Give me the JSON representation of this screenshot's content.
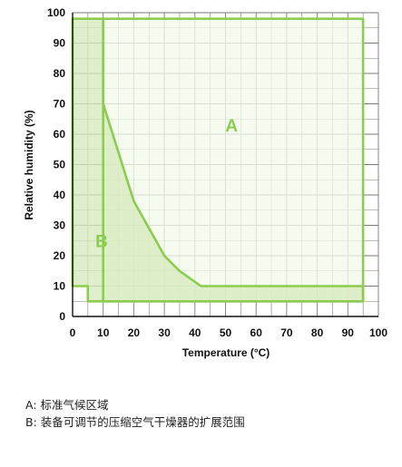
{
  "chart_data": {
    "type": "area",
    "xlabel": "Temperature (°C)",
    "ylabel": "Relative humidity (%)",
    "xlim": [
      0,
      100
    ],
    "ylim": [
      0,
      100
    ],
    "xticks": [
      0,
      10,
      20,
      30,
      40,
      50,
      60,
      70,
      80,
      90,
      100
    ],
    "yticks": [
      0,
      10,
      20,
      30,
      40,
      50,
      60,
      70,
      80,
      90,
      100
    ],
    "grid": true,
    "minor_grid_step": 5,
    "regions": [
      {
        "label": "A",
        "label_pos": [
          52,
          63
        ],
        "fill": "#f4faea",
        "stroke": "#8ccc4e",
        "points": [
          [
            10,
            98
          ],
          [
            95,
            98
          ],
          [
            95,
            5
          ],
          [
            10,
            5
          ]
        ]
      },
      {
        "label": "B",
        "label_pos": [
          9.5,
          25
        ],
        "fill": "#d6ebbd",
        "stroke": "#8ccc4e",
        "points": [
          [
            0,
            98
          ],
          [
            10,
            98
          ],
          [
            10,
            70
          ],
          [
            20,
            38
          ],
          [
            30,
            20
          ],
          [
            35,
            15
          ],
          [
            42,
            10
          ],
          [
            95,
            10
          ],
          [
            95,
            5
          ],
          [
            5,
            5
          ],
          [
            5,
            10
          ],
          [
            0,
            10
          ]
        ]
      }
    ],
    "label_colors": {
      "A": "#8ccc4e",
      "B": "#8ccc4e"
    }
  },
  "legend": [
    "A: 标准气候区域",
    "B: 装备可调节的压缩空气干燥器的扩展范围"
  ]
}
